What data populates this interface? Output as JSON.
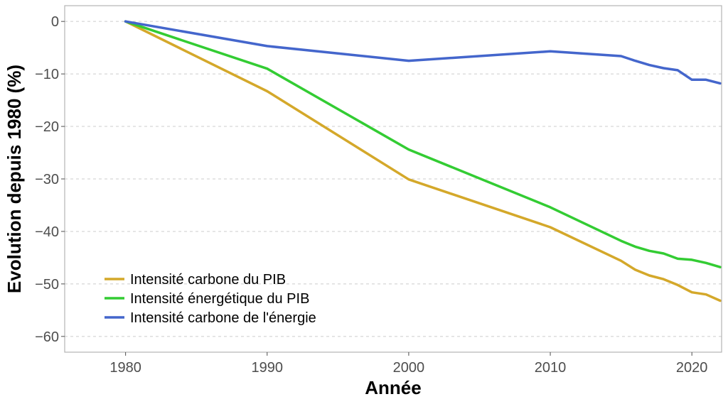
{
  "chart_data": {
    "type": "line",
    "title": "",
    "xlabel": "Année",
    "ylabel": "Evolution depuis 1980 (%)",
    "xlim": [
      1975.7,
      2022.1
    ],
    "ylim": [
      -63,
      3
    ],
    "xticks": [
      1980,
      1990,
      2000,
      2010,
      2020
    ],
    "yticks": [
      0,
      -10,
      -20,
      -30,
      -40,
      -50,
      -60
    ],
    "xtick_labels": [
      "1980",
      "1990",
      "2000",
      "2010",
      "2020"
    ],
    "ytick_labels": [
      "0",
      "−10",
      "−20",
      "−30",
      "−40",
      "−50",
      "−60"
    ],
    "grid": "horizontal dashed",
    "legend_position": "bottom-left",
    "series": [
      {
        "name": "Intensité carbone du PIB",
        "color": "#d4a82a",
        "x": [
          1980,
          1990,
          2000,
          2010,
          2015,
          2016,
          2017,
          2018,
          2019,
          2020,
          2021,
          2022
        ],
        "y": [
          0,
          -13.3,
          -30.1,
          -39.2,
          -45.6,
          -47.3,
          -48.4,
          -49.1,
          -50.2,
          -51.6,
          -52.0,
          -53.2
        ]
      },
      {
        "name": "Intensité énergétique du PIB",
        "color": "#33cc33",
        "x": [
          1980,
          1990,
          2000,
          2010,
          2015,
          2016,
          2017,
          2018,
          2019,
          2020,
          2021,
          2022
        ],
        "y": [
          0,
          -9.0,
          -24.4,
          -35.4,
          -41.8,
          -42.9,
          -43.7,
          -44.2,
          -45.2,
          -45.4,
          -46.0,
          -46.8
        ]
      },
      {
        "name": "Intensité carbone de l'énergie",
        "color": "#4466cc",
        "x": [
          1980,
          1990,
          2000,
          2010,
          2015,
          2016,
          2017,
          2018,
          2019,
          2020,
          2021,
          2022
        ],
        "y": [
          0,
          -4.7,
          -7.5,
          -5.7,
          -6.6,
          -7.5,
          -8.3,
          -8.9,
          -9.3,
          -11.1,
          -11.1,
          -11.8
        ]
      }
    ]
  }
}
